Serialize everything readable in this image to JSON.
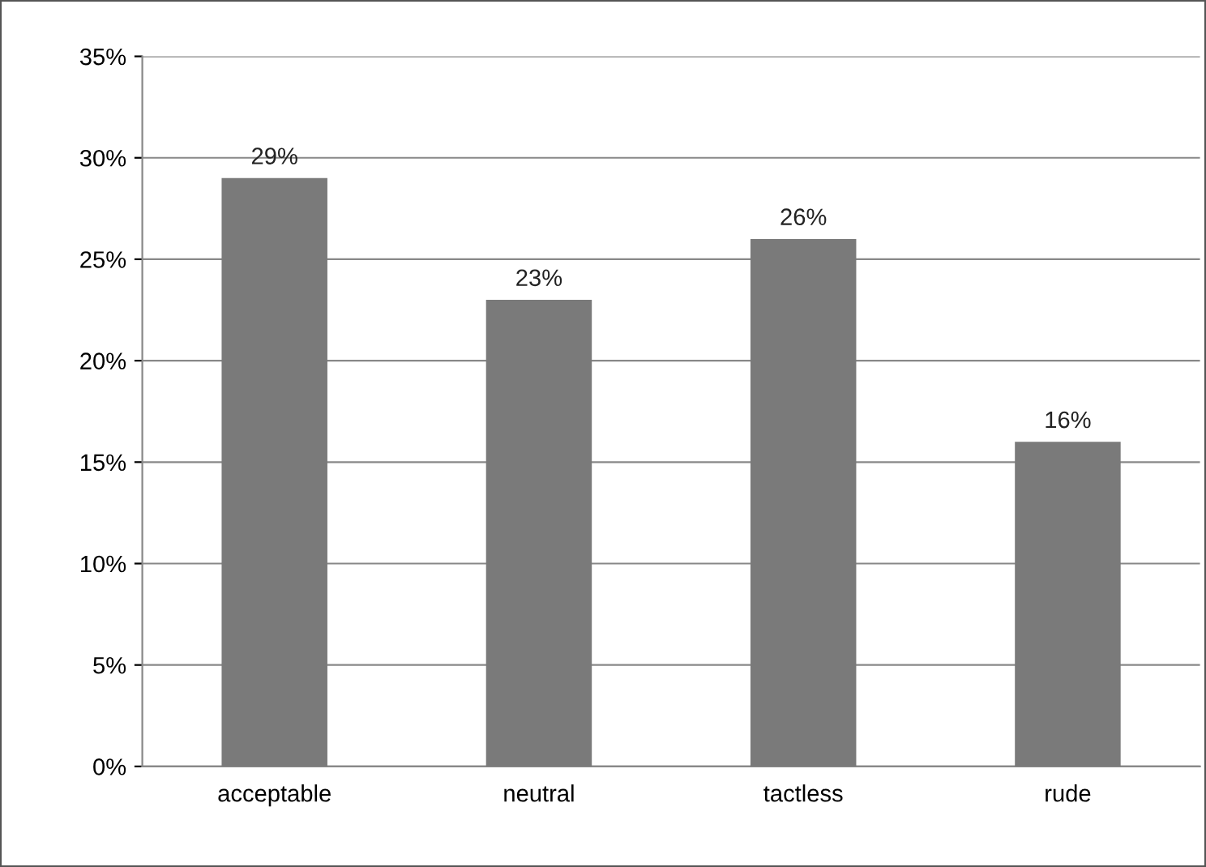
{
  "chart_data": {
    "type": "bar",
    "categories": [
      "acceptable",
      "neutral",
      "tactless",
      "rude"
    ],
    "values": [
      29,
      23,
      26,
      16
    ],
    "color": "#7a7a7a",
    "value_labels": [
      "29%",
      "23%",
      "26%",
      "16%"
    ],
    "ylim": [
      0,
      35
    ],
    "yticks": [
      {
        "value": 0,
        "label": "0%"
      },
      {
        "value": 5,
        "label": "5%"
      },
      {
        "value": 10,
        "label": "10%"
      },
      {
        "value": 15,
        "label": "15%"
      },
      {
        "value": 20,
        "label": "20%"
      },
      {
        "value": 25,
        "label": "25%"
      },
      {
        "value": 30,
        "label": "30%"
      },
      {
        "value": 35,
        "label": "35%"
      }
    ],
    "grid": "y",
    "legend": false
  }
}
